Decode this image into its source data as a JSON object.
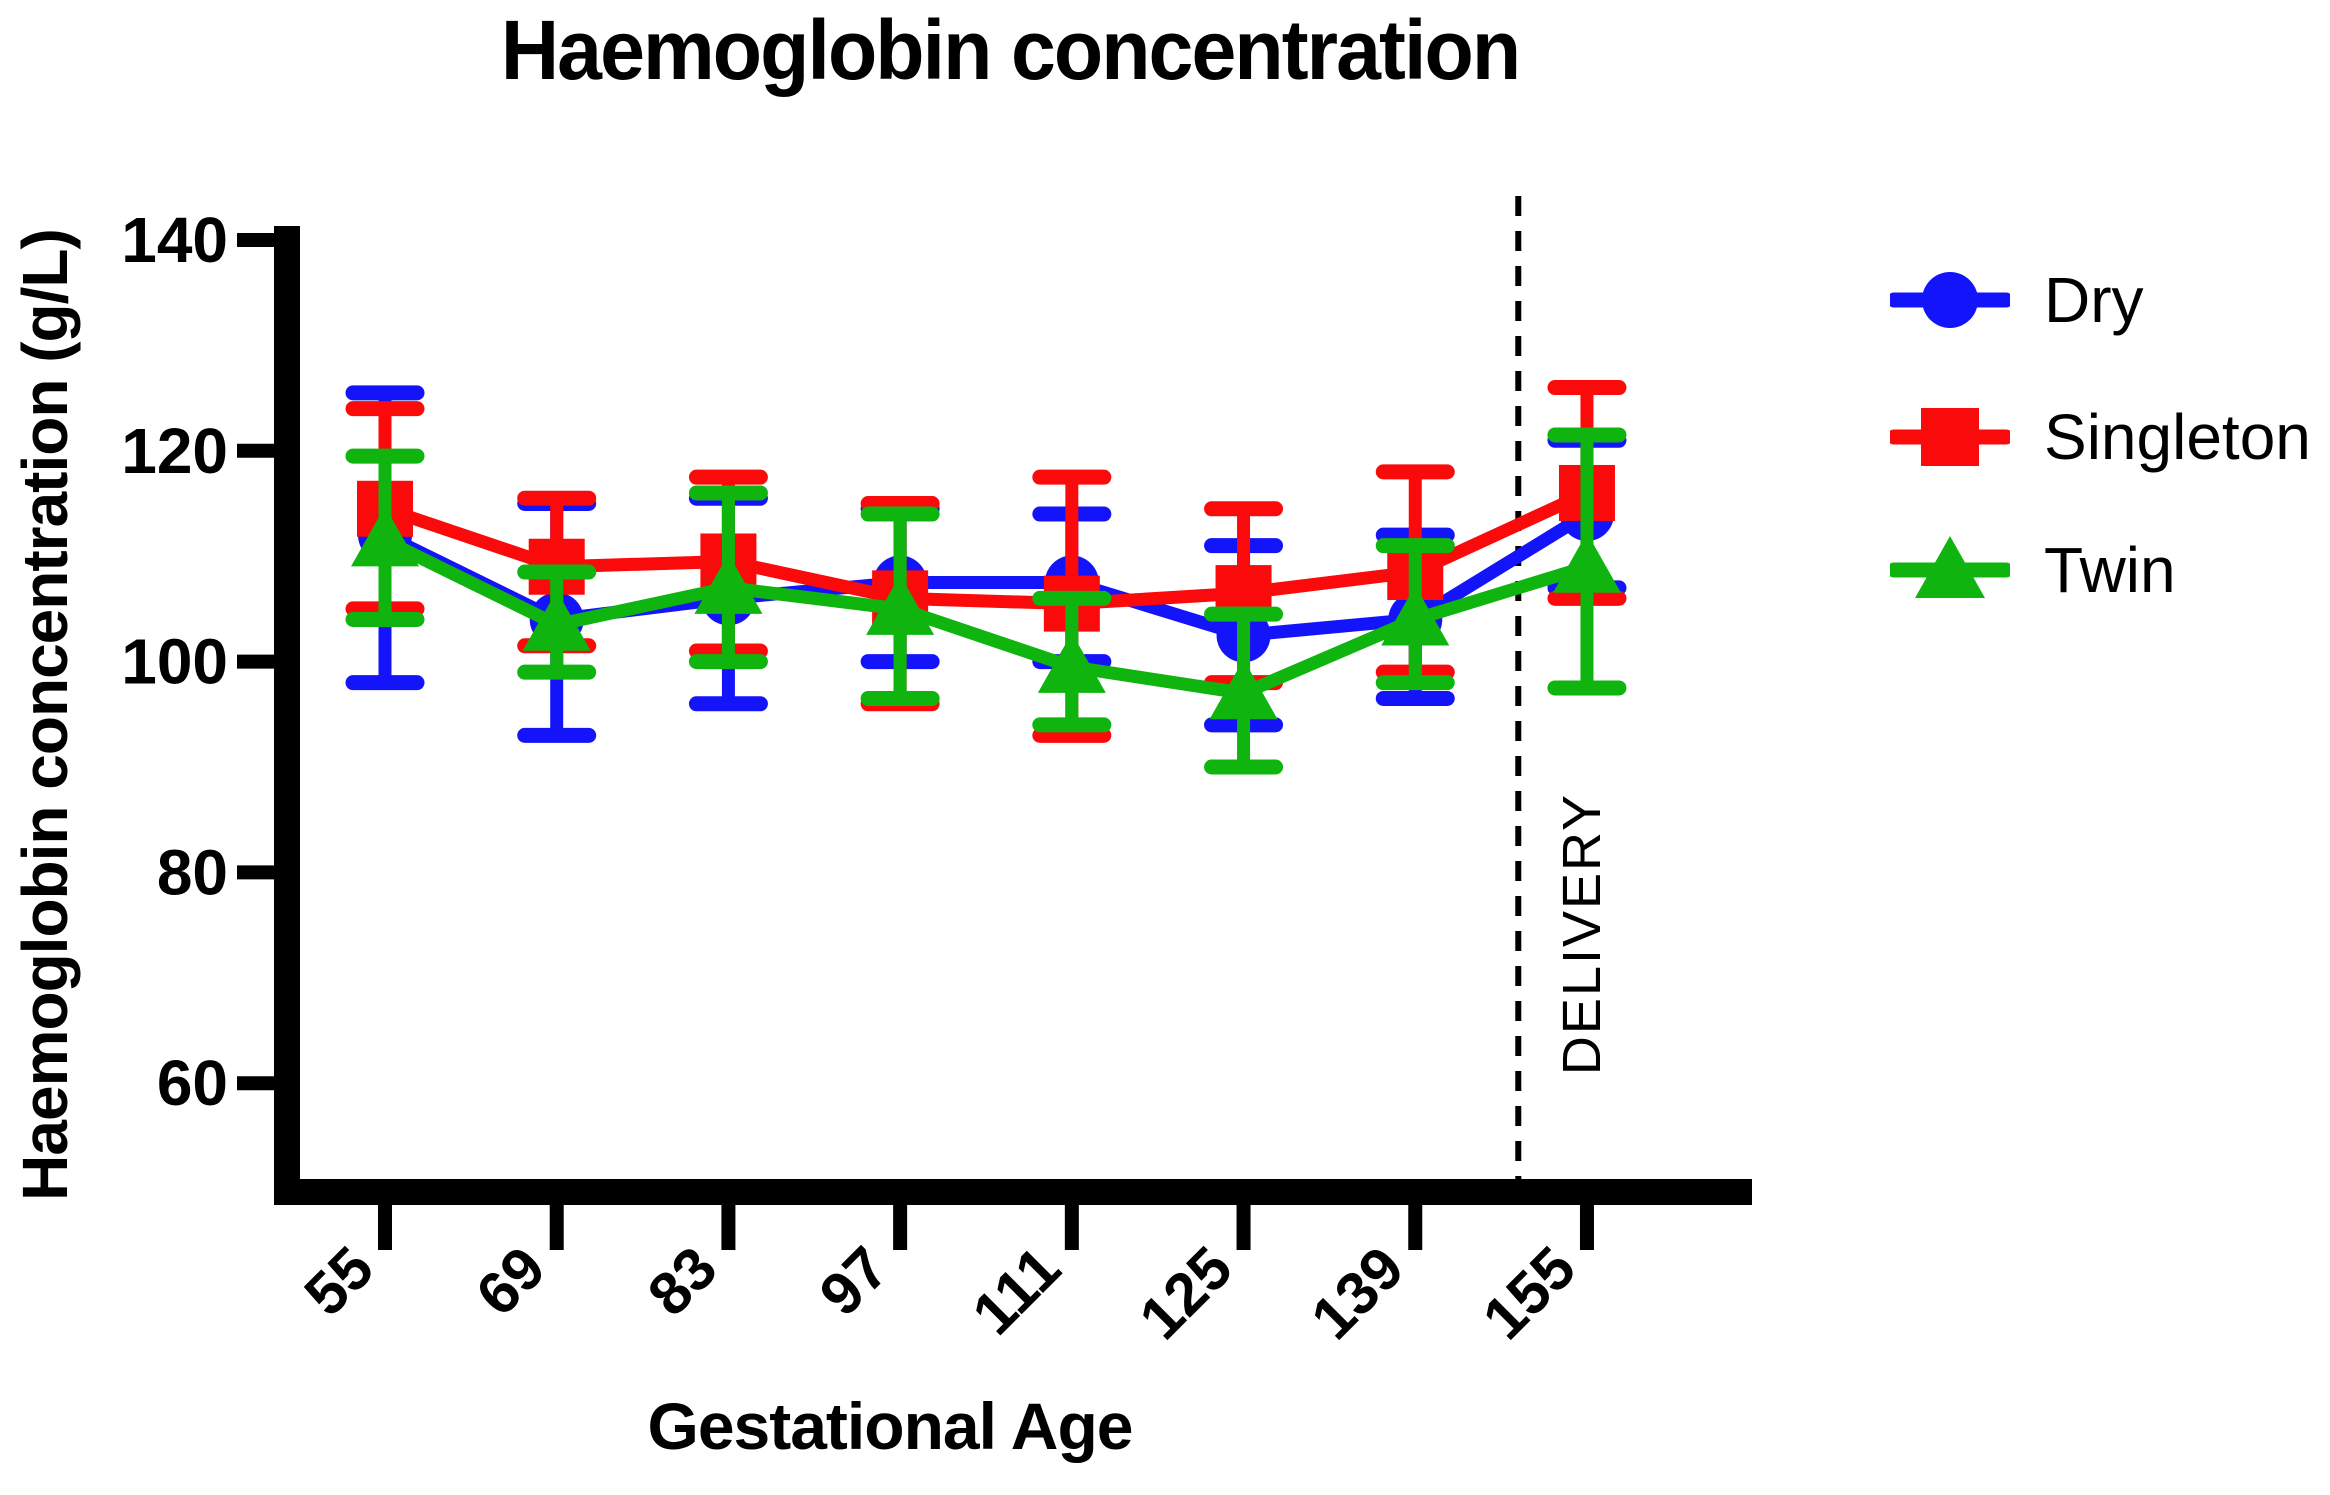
{
  "title": "Haemoglobin concentration",
  "y_axis": {
    "label": "Haemoglobin concentration (g/L)",
    "ticks": [
      140,
      120,
      100,
      80,
      60
    ],
    "ylim": [
      50,
      141
    ]
  },
  "x_axis": {
    "label": "Gestational Age",
    "categories": [
      "55",
      "69",
      "83",
      "97",
      "111",
      "125",
      "139",
      "155"
    ]
  },
  "delivery": {
    "label": "DELIVERY",
    "position_between_categories": 6.6
  },
  "colors": {
    "axis": "#000000",
    "dry": "#1414fa",
    "singleton": "#fa0a0a",
    "twin": "#0fb40f"
  },
  "legend": [
    {
      "label": "Dry",
      "marker": "circle",
      "color_key": "dry"
    },
    {
      "label": "Singleton",
      "marker": "square",
      "color_key": "singleton"
    },
    {
      "label": "Twin",
      "marker": "triangle",
      "color_key": "twin"
    }
  ],
  "chart_data": {
    "type": "line",
    "title": "Haemoglobin concentration",
    "xlabel": "Gestational Age",
    "ylabel": "Haemoglobin concentration (g/L)",
    "categories": [
      55,
      69,
      83,
      97,
      111,
      125,
      139,
      155
    ],
    "ylim": [
      50,
      141
    ],
    "grid": false,
    "legend_position": "right",
    "annotation_line": {
      "label": "DELIVERY",
      "x_between": [
        139,
        155
      ]
    },
    "series": [
      {
        "name": "Dry",
        "marker": "circle",
        "color_key": "dry",
        "values": [
          112,
          104,
          106,
          107.5,
          107.5,
          102.5,
          104,
          114
        ],
        "error_lower": [
          98,
          93,
          96,
          100,
          100,
          94,
          96.5,
          107
        ],
        "error_upper": [
          125.5,
          115,
          115.5,
          114.5,
          114,
          111,
          112,
          121
        ]
      },
      {
        "name": "Singleton",
        "marker": "square",
        "color_key": "singleton",
        "values": [
          114.5,
          109,
          109.5,
          106,
          105.5,
          106.5,
          108.5,
          116
        ],
        "error_lower": [
          105,
          101.5,
          101,
          96,
          93,
          98,
          99,
          106
        ],
        "error_upper": [
          124,
          115.5,
          117.5,
          115,
          117.5,
          114.5,
          118,
          126
        ]
      },
      {
        "name": "Twin",
        "marker": "triangle",
        "color_key": "twin",
        "values": [
          111.5,
          103.5,
          107,
          105,
          99.5,
          97,
          104,
          109
        ],
        "error_lower": [
          104,
          99,
          100,
          96.5,
          94,
          90,
          98,
          97.5
        ],
        "error_upper": [
          119.5,
          108.5,
          116,
          114,
          106,
          104.5,
          111,
          121.5
        ]
      }
    ]
  }
}
